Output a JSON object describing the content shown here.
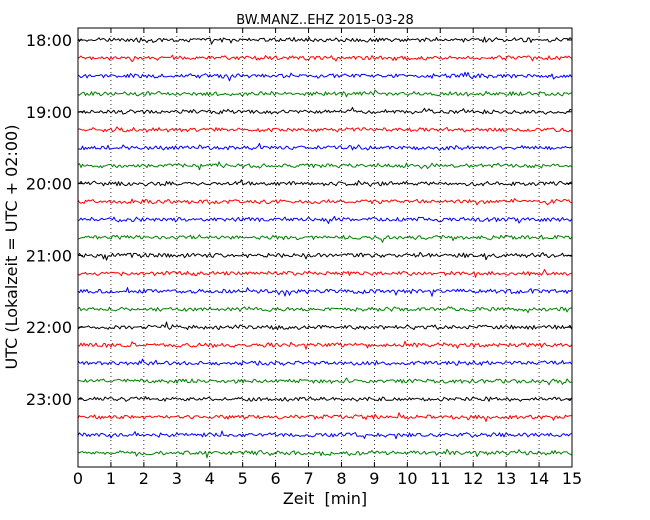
{
  "chart_data": {
    "type": "line",
    "title": "BW.MANZ..EHZ 2015-03-28",
    "xlabel": "Zeit  [min]",
    "ylabel": "UTC (Lokalzeit = UTC + 02:00)",
    "xlim": [
      0,
      15
    ],
    "x_ticks": [
      "0",
      "1",
      "2",
      "3",
      "4",
      "5",
      "6",
      "7",
      "8",
      "9",
      "10",
      "11",
      "12",
      "13",
      "14",
      "15"
    ],
    "y_tick_labels": [
      "18:00",
      "19:00",
      "20:00",
      "21:00",
      "22:00",
      "23:00"
    ],
    "grid": "vertical dotted lines at each minute",
    "trace_colors": [
      "#000000",
      "#ff0000",
      "#0000ff",
      "#008000"
    ],
    "trace_count": 24,
    "trace_interval_minutes": 15,
    "trace_start": "18:00"
  }
}
